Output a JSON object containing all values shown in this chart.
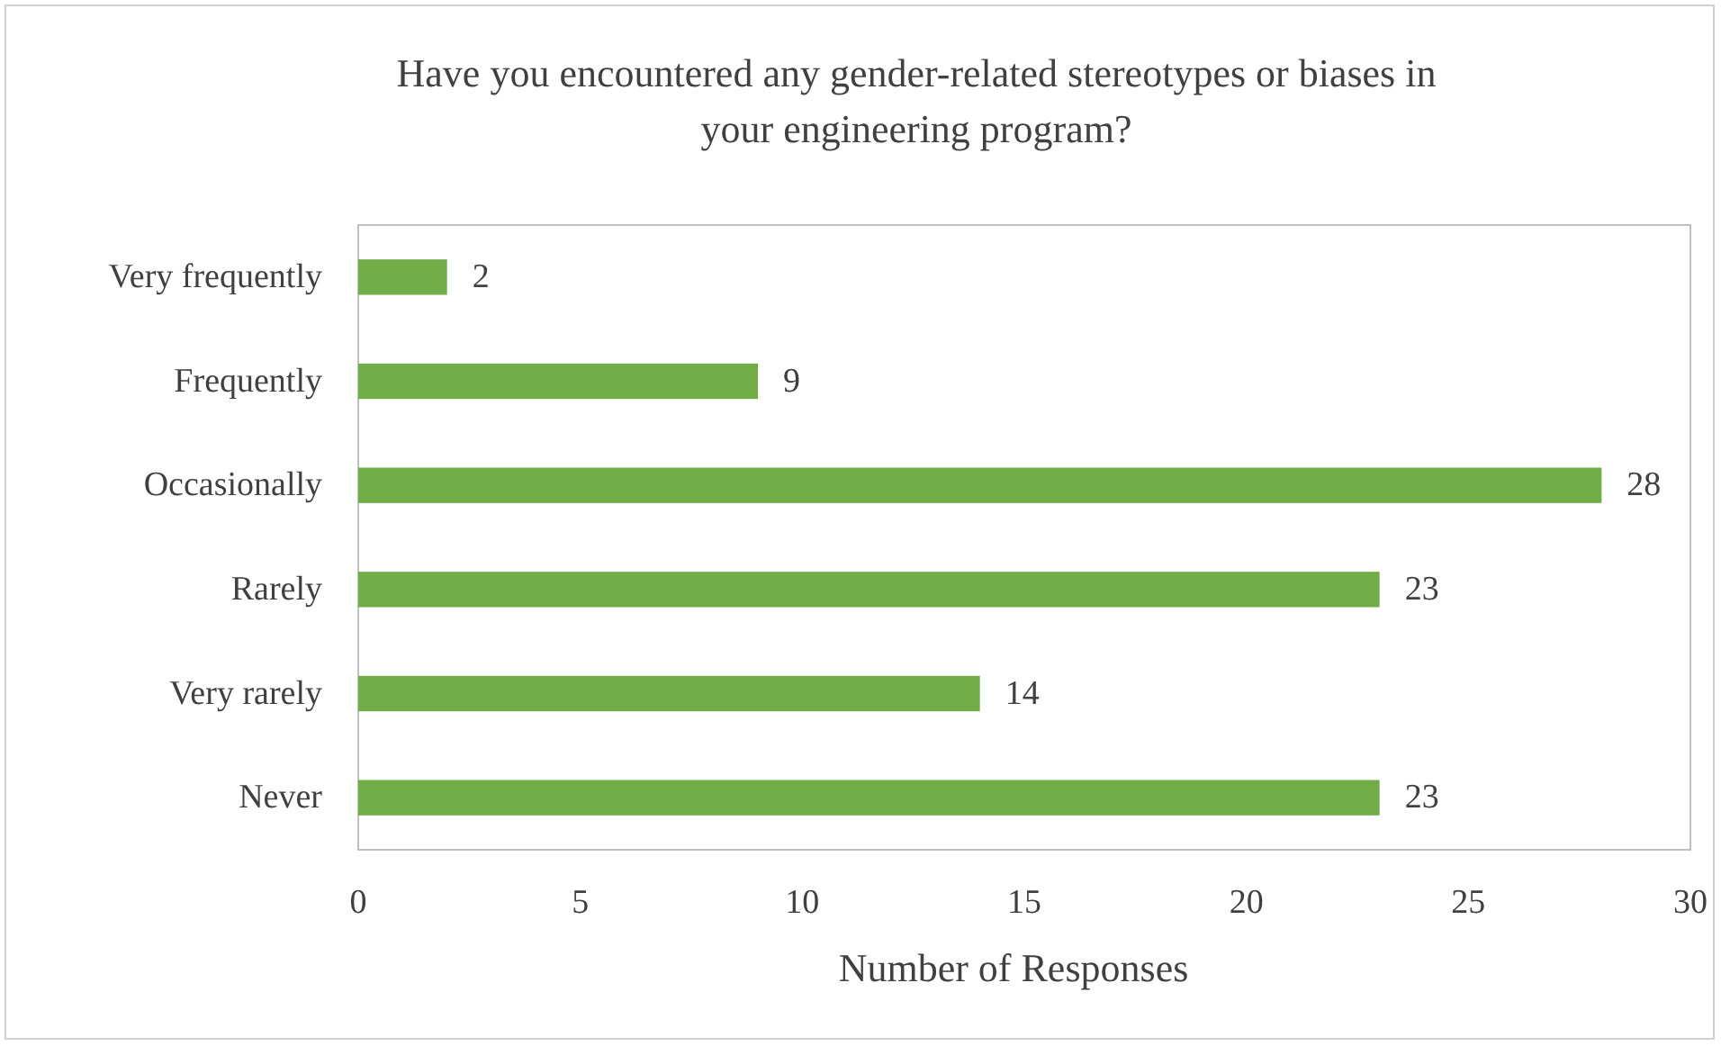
{
  "chart_data": {
    "type": "bar",
    "orientation": "horizontal",
    "title": "Have you encountered any gender-related stereotypes or biases in your engineering program?",
    "xlabel": "Number of Responses",
    "categories": [
      "Very frequently",
      "Frequently",
      "Occasionally",
      "Rarely",
      "Very rarely",
      "Never"
    ],
    "values": [
      2,
      9,
      28,
      23,
      14,
      23
    ],
    "color": "#70ad47",
    "xlim": [
      0,
      30
    ],
    "xticks": [
      0,
      5,
      10,
      15,
      20,
      25,
      30
    ],
    "data_labels": true,
    "grid": false
  }
}
